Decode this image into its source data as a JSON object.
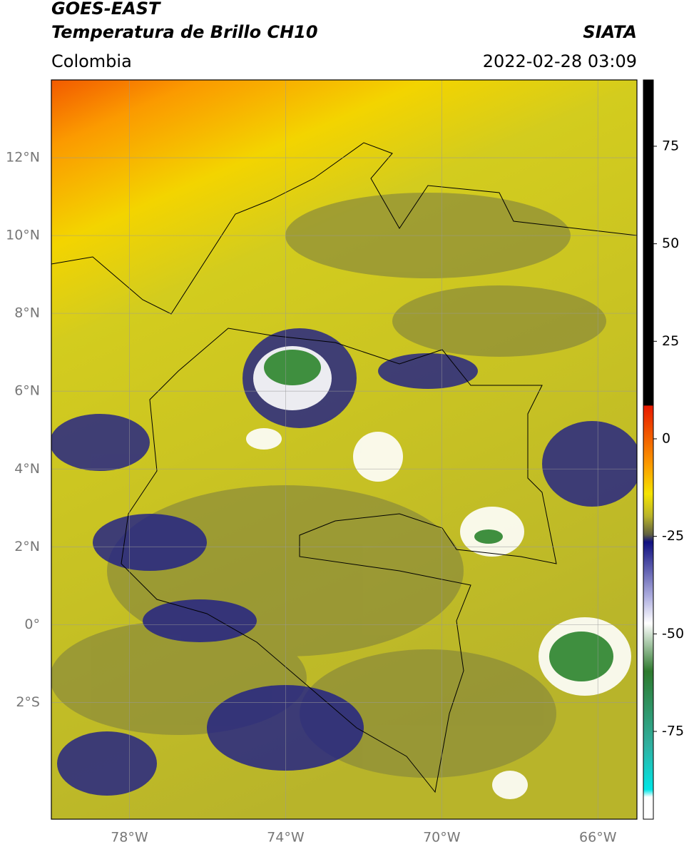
{
  "header": {
    "satellite": "GOES-EAST",
    "product": "Temperatura de Brillo CH10",
    "source": "SIATA",
    "region": "Colombia",
    "datetime": "2022-02-28 03:09"
  },
  "map": {
    "lonlim": [
      -80,
      -65
    ],
    "latlim": [
      -5,
      14
    ],
    "lonticks": [
      {
        "value": -78,
        "label": "78°W"
      },
      {
        "value": -74,
        "label": "74°W"
      },
      {
        "value": -70,
        "label": "70°W"
      },
      {
        "value": -66,
        "label": "66°W"
      }
    ],
    "latticks": [
      {
        "value": 12,
        "label": "12°N"
      },
      {
        "value": 10,
        "label": "10°N"
      },
      {
        "value": 8,
        "label": "8°N"
      },
      {
        "value": 6,
        "label": "6°N"
      },
      {
        "value": 4,
        "label": "4°N"
      },
      {
        "value": 2,
        "label": "2°N"
      },
      {
        "value": 0,
        "label": "0°"
      },
      {
        "value": -2,
        "label": "2°S"
      }
    ]
  },
  "colorbar": {
    "lim": [
      -97.5,
      92
    ],
    "ticks": [
      75,
      50,
      25,
      0,
      -25,
      -50,
      -75
    ]
  }
}
